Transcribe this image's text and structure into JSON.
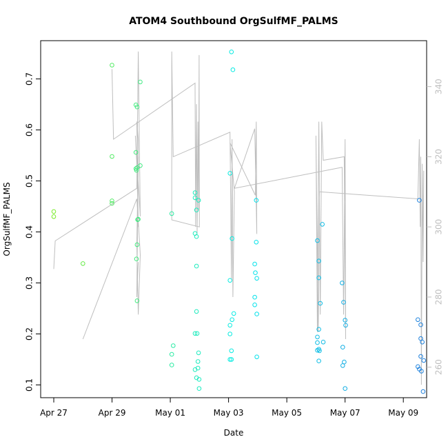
{
  "chart_data": {
    "type": "scatter",
    "title": "ATOM4 Southbound OrgSulfMF_PALMS",
    "xlabel": "Date",
    "ylabel": "OrgSulfMF_PALMS",
    "x_ticks": [
      "Apr 27",
      "Apr 29",
      "May 01",
      "May 03",
      "May 05",
      "May 07",
      "May 09"
    ],
    "xlim_days": [
      26.55,
      39.8
    ],
    "ylim": [
      0.075,
      0.775
    ],
    "y_ticks": [
      "0.1",
      "0.2",
      "0.3",
      "0.4",
      "0.5",
      "0.6",
      "0.7"
    ],
    "y2_ticks": [
      "260",
      "280",
      "300",
      "320",
      "340"
    ],
    "y2lim": [
      251.3,
      353.1
    ],
    "grid": false,
    "point_color_by": "day",
    "line_color": "#bebebe",
    "points": [
      {
        "day": 27.0,
        "y": 0.44
      },
      {
        "day": 27.0,
        "y": 0.43
      },
      {
        "day": 28.0,
        "y": 0.338
      },
      {
        "day": 29.0,
        "y": 0.727
      },
      {
        "day": 29.0,
        "y": 0.548
      },
      {
        "day": 29.0,
        "y": 0.461
      },
      {
        "day": 29.0,
        "y": 0.456
      },
      {
        "day": 29.82,
        "y": 0.649
      },
      {
        "day": 29.86,
        "y": 0.645
      },
      {
        "day": 29.82,
        "y": 0.556
      },
      {
        "day": 29.82,
        "y": 0.524
      },
      {
        "day": 29.84,
        "y": 0.521
      },
      {
        "day": 29.86,
        "y": 0.526
      },
      {
        "day": 29.97,
        "y": 0.53
      },
      {
        "day": 29.88,
        "y": 0.424
      },
      {
        "day": 29.9,
        "y": 0.425
      },
      {
        "day": 29.86,
        "y": 0.375
      },
      {
        "day": 29.84,
        "y": 0.347
      },
      {
        "day": 29.86,
        "y": 0.265
      },
      {
        "day": 29.97,
        "y": 0.694
      },
      {
        "day": 31.05,
        "y": 0.436
      },
      {
        "day": 31.1,
        "y": 0.177
      },
      {
        "day": 31.05,
        "y": 0.16
      },
      {
        "day": 31.05,
        "y": 0.139
      },
      {
        "day": 31.85,
        "y": 0.477
      },
      {
        "day": 31.85,
        "y": 0.467
      },
      {
        "day": 31.97,
        "y": 0.462
      },
      {
        "day": 31.9,
        "y": 0.443
      },
      {
        "day": 31.85,
        "y": 0.397
      },
      {
        "day": 31.9,
        "y": 0.391
      },
      {
        "day": 31.9,
        "y": 0.333
      },
      {
        "day": 31.9,
        "y": 0.244
      },
      {
        "day": 31.85,
        "y": 0.201
      },
      {
        "day": 31.92,
        "y": 0.201
      },
      {
        "day": 31.97,
        "y": 0.163
      },
      {
        "day": 31.95,
        "y": 0.146
      },
      {
        "day": 31.95,
        "y": 0.133
      },
      {
        "day": 31.85,
        "y": 0.13
      },
      {
        "day": 31.9,
        "y": 0.114
      },
      {
        "day": 31.99,
        "y": 0.111
      },
      {
        "day": 31.99,
        "y": 0.093
      },
      {
        "day": 33.1,
        "y": 0.753
      },
      {
        "day": 33.15,
        "y": 0.718
      },
      {
        "day": 33.05,
        "y": 0.515
      },
      {
        "day": 33.12,
        "y": 0.387
      },
      {
        "day": 33.05,
        "y": 0.305
      },
      {
        "day": 33.18,
        "y": 0.24
      },
      {
        "day": 33.12,
        "y": 0.228
      },
      {
        "day": 33.05,
        "y": 0.217
      },
      {
        "day": 33.05,
        "y": 0.2
      },
      {
        "day": 33.1,
        "y": 0.167
      },
      {
        "day": 33.05,
        "y": 0.15
      },
      {
        "day": 33.1,
        "y": 0.15
      },
      {
        "day": 33.95,
        "y": 0.462
      },
      {
        "day": 33.95,
        "y": 0.38
      },
      {
        "day": 33.9,
        "y": 0.337
      },
      {
        "day": 33.92,
        "y": 0.32
      },
      {
        "day": 33.97,
        "y": 0.309
      },
      {
        "day": 33.9,
        "y": 0.272
      },
      {
        "day": 33.9,
        "y": 0.257
      },
      {
        "day": 33.97,
        "y": 0.239
      },
      {
        "day": 33.97,
        "y": 0.155
      },
      {
        "day": 36.05,
        "y": 0.383
      },
      {
        "day": 36.22,
        "y": 0.415
      },
      {
        "day": 36.1,
        "y": 0.343
      },
      {
        "day": 36.1,
        "y": 0.31
      },
      {
        "day": 36.15,
        "y": 0.26
      },
      {
        "day": 36.1,
        "y": 0.209
      },
      {
        "day": 36.05,
        "y": 0.194
      },
      {
        "day": 36.25,
        "y": 0.184
      },
      {
        "day": 36.05,
        "y": 0.183
      },
      {
        "day": 36.1,
        "y": 0.17
      },
      {
        "day": 36.05,
        "y": 0.168
      },
      {
        "day": 36.12,
        "y": 0.167
      },
      {
        "day": 36.1,
        "y": 0.147
      },
      {
        "day": 36.9,
        "y": 0.3
      },
      {
        "day": 36.95,
        "y": 0.262
      },
      {
        "day": 37.0,
        "y": 0.227
      },
      {
        "day": 37.02,
        "y": 0.217
      },
      {
        "day": 36.92,
        "y": 0.174
      },
      {
        "day": 36.97,
        "y": 0.145
      },
      {
        "day": 36.92,
        "y": 0.138
      },
      {
        "day": 37.0,
        "y": 0.093
      },
      {
        "day": 39.55,
        "y": 0.462
      },
      {
        "day": 39.5,
        "y": 0.228
      },
      {
        "day": 39.6,
        "y": 0.218
      },
      {
        "day": 39.6,
        "y": 0.191
      },
      {
        "day": 39.65,
        "y": 0.184
      },
      {
        "day": 39.6,
        "y": 0.156
      },
      {
        "day": 39.7,
        "y": 0.148
      },
      {
        "day": 39.5,
        "y": 0.136
      },
      {
        "day": 39.55,
        "y": 0.131
      },
      {
        "day": 39.62,
        "y": 0.127
      },
      {
        "day": 39.68,
        "y": 0.087
      }
    ],
    "line": [
      {
        "day": 27.0,
        "y2": 288
      },
      {
        "day": 27.05,
        "y2": 296
      },
      {
        "day": 29.85,
        "y2": 311
      },
      {
        "day": 29.9,
        "y2": 350
      },
      {
        "day": 29.97,
        "y2": 303
      },
      {
        "day": 29.8,
        "y2": 326
      },
      {
        "day": 29.85,
        "y2": 318
      },
      {
        "day": 29.9,
        "y2": 300
      },
      {
        "day": 29.85,
        "y2": 330
      },
      {
        "day": 29.9,
        "y2": 325
      },
      {
        "day": 29.85,
        "y2": 280
      },
      {
        "day": 29.9,
        "y2": 290
      },
      {
        "day": 29.85,
        "y2": 280
      },
      {
        "day": 29.9,
        "y2": 320
      },
      {
        "day": 29.85,
        "y2": 295
      },
      {
        "day": 29.9,
        "y2": 275
      },
      {
        "day": 29.97,
        "y2": 292
      },
      {
        "day": 29.95,
        "y2": 295
      },
      {
        "day": 29.85,
        "y2": 308
      },
      {
        "day": 28.0,
        "y2": 268
      }
    ],
    "line2": [
      {
        "day": 29.0,
        "y2": 345
      },
      {
        "day": 29.05,
        "y2": 325
      },
      {
        "day": 31.85,
        "y2": 341
      },
      {
        "day": 31.87,
        "y2": 300
      },
      {
        "day": 31.9,
        "y2": 335
      },
      {
        "day": 31.92,
        "y2": 298
      },
      {
        "day": 31.95,
        "y2": 330
      },
      {
        "day": 31.97,
        "y2": 305
      },
      {
        "day": 31.99,
        "y2": 349
      },
      {
        "day": 32.0,
        "y2": 300
      },
      {
        "day": 31.05,
        "y2": 302
      },
      {
        "day": 31.05,
        "y2": 350
      },
      {
        "day": 31.1,
        "y2": 320
      },
      {
        "day": 33.05,
        "y2": 327
      },
      {
        "day": 33.1,
        "y2": 285
      },
      {
        "day": 33.12,
        "y2": 325
      },
      {
        "day": 33.15,
        "y2": 280
      },
      {
        "day": 33.2,
        "y2": 310
      },
      {
        "day": 33.05,
        "y2": 324
      },
      {
        "day": 33.92,
        "y2": 309
      },
      {
        "day": 33.95,
        "y2": 330
      },
      {
        "day": 33.97,
        "y2": 298
      },
      {
        "day": 33.9,
        "y2": 328
      },
      {
        "day": 33.2,
        "y2": 311
      },
      {
        "day": 36.9,
        "y2": 317
      },
      {
        "day": 36.95,
        "y2": 275
      },
      {
        "day": 37.0,
        "y2": 325
      },
      {
        "day": 37.02,
        "y2": 268
      },
      {
        "day": 36.97,
        "y2": 320
      },
      {
        "day": 36.25,
        "y2": 319
      },
      {
        "day": 36.2,
        "y2": 330
      },
      {
        "day": 36.15,
        "y2": 275
      },
      {
        "day": 36.1,
        "y2": 330
      },
      {
        "day": 36.05,
        "y2": 270
      },
      {
        "day": 36.0,
        "y2": 326
      },
      {
        "day": 36.08,
        "y2": 270
      },
      {
        "day": 36.12,
        "y2": 310
      },
      {
        "day": 39.5,
        "y2": 308
      },
      {
        "day": 39.55,
        "y2": 325
      },
      {
        "day": 39.58,
        "y2": 300
      },
      {
        "day": 39.6,
        "y2": 320
      },
      {
        "day": 39.62,
        "y2": 255
      },
      {
        "day": 39.65,
        "y2": 318
      },
      {
        "day": 39.68,
        "y2": 290
      },
      {
        "day": 39.7,
        "y2": 316
      }
    ]
  }
}
